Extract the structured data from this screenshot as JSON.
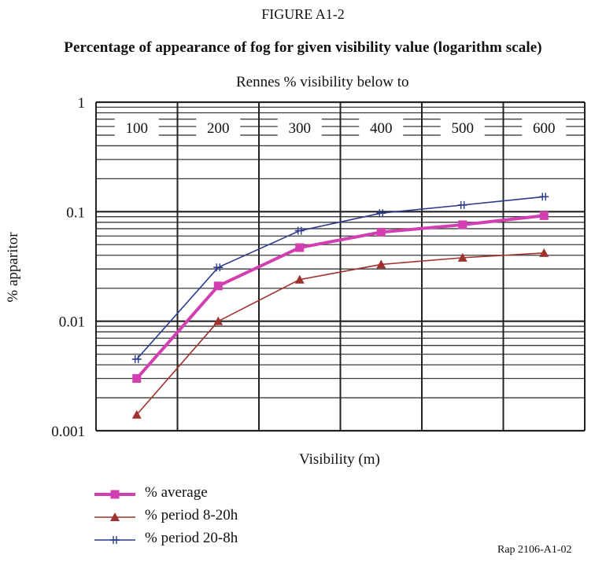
{
  "figure_label": "FIGURE A1-2",
  "figure_title": "Percentage of appearance of fog for given visibility value (logarithm scale)",
  "reference": "Rap 2106-A1-02",
  "chart_data": {
    "type": "line",
    "title": "Rennes % visibility below to",
    "xlabel": "Visibility (m)",
    "ylabel": "% apparitor",
    "y_scale": "log",
    "ylim": [
      0.001,
      1
    ],
    "y_ticks": [
      "1",
      "0.1",
      "0.01",
      "0.001"
    ],
    "categories": [
      "100",
      "200",
      "300",
      "400",
      "500",
      "600"
    ],
    "grid": true,
    "legend_position": "bottom-left",
    "series": [
      {
        "name": "% average",
        "color": "#d23fb0",
        "marker": "square",
        "values": [
          0.003,
          0.021,
          0.047,
          0.065,
          0.076,
          0.092
        ]
      },
      {
        "name": "% period 8-20h",
        "color": "#a0322e",
        "marker": "triangle",
        "values": [
          0.0014,
          0.01,
          0.024,
          0.033,
          0.038,
          0.042
        ]
      },
      {
        "name": "% period 20-8h",
        "color": "#2a3a8c",
        "marker": "plus",
        "values": [
          0.0045,
          0.031,
          0.067,
          0.097,
          0.115,
          0.137
        ]
      }
    ]
  }
}
